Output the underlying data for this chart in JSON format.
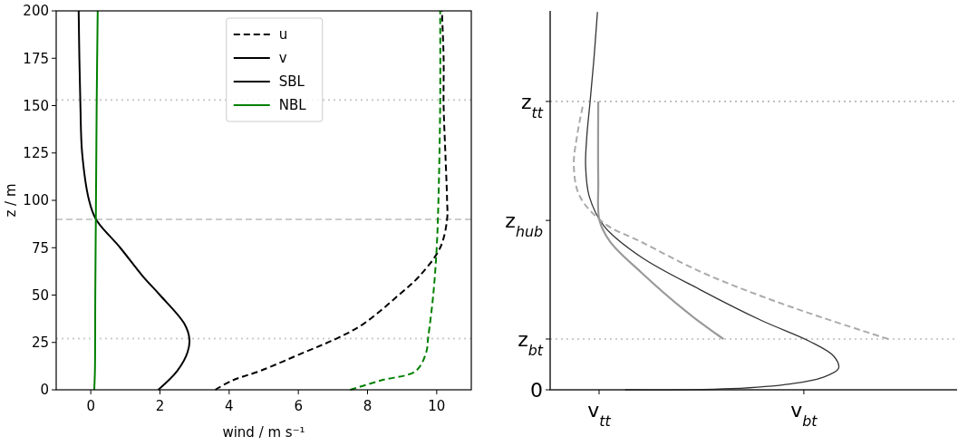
{
  "chart_data": [
    {
      "type": "line",
      "xlabel": "wind / m s⁻¹",
      "ylabel": "z / m",
      "xlim": [
        -1,
        11
      ],
      "ylim": [
        0,
        200
      ],
      "xticks": [
        0,
        2,
        4,
        6,
        8,
        10
      ],
      "yticks": [
        0,
        25,
        50,
        75,
        100,
        125,
        150,
        175,
        200
      ],
      "grid": false,
      "legend": "top",
      "annotations": [
        "v"
      ],
      "ref_lines": [
        {
          "axis": "y",
          "value": 153,
          "color": "#cccccc",
          "line_style": "dotted"
        },
        {
          "axis": "y",
          "value": 90,
          "color": "#cccccc",
          "line_style": "dashed"
        },
        {
          "axis": "y",
          "value": 27,
          "color": "#cccccc",
          "line_style": "dotted"
        }
      ],
      "series": [
        {
          "name": "u",
          "color": "#000000",
          "line_style": "dashed",
          "x": [
            3.6,
            4.1,
            4.9,
            6.2,
            7.1,
            7.9,
            8.9,
            9.5,
            10.1,
            10.3,
            10.3,
            10.25,
            10.2,
            10.2,
            10.15
          ],
          "values": [
            0,
            5,
            10,
            20,
            27,
            35,
            50,
            60,
            75,
            90,
            100,
            125,
            150,
            175,
            200
          ]
        },
        {
          "name": "SBL",
          "color": "#000000",
          "line_style": "solid",
          "x": [
            1.95,
            2.5,
            2.8,
            2.85,
            2.7,
            2.0,
            1.5,
            0.85,
            0.15,
            -0.05,
            -0.25,
            -0.3,
            -0.33,
            -0.35
          ],
          "values": [
            0,
            10,
            20,
            27,
            35,
            50,
            60,
            75,
            90,
            100,
            125,
            150,
            175,
            200
          ]
        },
        {
          "color": "#008000",
          "line_style": "dashed",
          "x": [
            7.5,
            8.4,
            9.4,
            9.7,
            9.75,
            9.9,
            10.0,
            10.05,
            10.1,
            10.1
          ],
          "values": [
            0,
            5,
            10,
            20,
            27,
            50,
            75,
            100,
            150,
            200
          ]
        },
        {
          "name": "NBL",
          "color": "#008000",
          "line_style": "solid",
          "x": [
            0.1,
            0.12,
            0.13,
            0.15,
            0.17,
            0.2
          ],
          "values": [
            0,
            10,
            50,
            100,
            150,
            200
          ]
        }
      ]
    },
    {
      "type": "other",
      "annotations": [
        "v$_{tt}$",
        "v$_{bt}$",
        "0",
        "z$_{bt}$",
        "z$_{hub}$",
        "z$_{tt}$"
      ]
    }
  ]
}
